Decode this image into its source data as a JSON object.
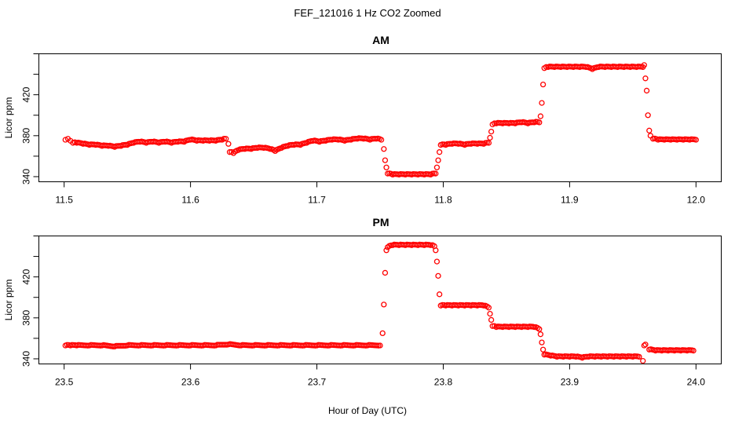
{
  "title": "FEF_121016  1 Hz CO2 Zoomed",
  "xlabel": "Hour of Day (UTC)",
  "colors": {
    "points": "#ff0000"
  },
  "chart_data": [
    {
      "type": "scatter",
      "title": "AM",
      "ylabel": "Licor ppm",
      "xlim": [
        11.48,
        12.02
      ],
      "ylim": [
        335,
        460
      ],
      "x_ticks": [
        11.5,
        11.6,
        11.7,
        11.8,
        11.9,
        12.0
      ],
      "x_tick_labels": [
        "11.5",
        "11.6",
        "11.7",
        "11.8",
        "11.9",
        "12.0"
      ],
      "y_ticks": [
        340,
        380,
        420
      ],
      "y_tick_labels": [
        "340",
        "380",
        "420"
      ],
      "grid": false,
      "series": [
        {
          "marker": "open-circle",
          "points": [
            [
              11.501,
              376
            ],
            [
              11.503,
              377
            ],
            [
              11.505,
              375
            ],
            [
              11.507,
              373
            ],
            [
              11.51,
              373
            ],
            [
              11.515,
              372
            ],
            [
              11.52,
              371
            ],
            [
              11.525,
              371
            ],
            [
              11.53,
              370
            ],
            [
              11.535,
              370
            ],
            [
              11.54,
              369
            ],
            [
              11.545,
              370
            ],
            [
              11.55,
              371
            ],
            [
              11.555,
              373
            ],
            [
              11.56,
              374
            ],
            [
              11.565,
              373
            ],
            [
              11.57,
              374
            ],
            [
              11.575,
              373
            ],
            [
              11.58,
              374
            ],
            [
              11.585,
              373
            ],
            [
              11.59,
              374
            ],
            [
              11.595,
              374
            ],
            [
              11.6,
              376
            ],
            [
              11.605,
              375
            ],
            [
              11.61,
              375
            ],
            [
              11.615,
              375
            ],
            [
              11.62,
              375
            ],
            [
              11.625,
              376
            ],
            [
              11.628,
              377
            ],
            [
              11.63,
              372
            ],
            [
              11.631,
              364
            ],
            [
              11.634,
              363
            ],
            [
              11.638,
              366
            ],
            [
              11.643,
              367
            ],
            [
              11.648,
              367
            ],
            [
              11.653,
              368
            ],
            [
              11.658,
              368
            ],
            [
              11.663,
              367
            ],
            [
              11.667,
              365
            ],
            [
              11.672,
              368
            ],
            [
              11.677,
              370
            ],
            [
              11.682,
              371
            ],
            [
              11.687,
              371
            ],
            [
              11.692,
              373
            ],
            [
              11.697,
              375
            ],
            [
              11.702,
              374
            ],
            [
              11.707,
              375
            ],
            [
              11.712,
              376
            ],
            [
              11.717,
              376
            ],
            [
              11.722,
              375
            ],
            [
              11.727,
              376
            ],
            [
              11.732,
              377
            ],
            [
              11.737,
              377
            ],
            [
              11.742,
              376
            ],
            [
              11.747,
              377
            ],
            [
              11.751,
              376
            ],
            [
              11.753,
              367
            ],
            [
              11.754,
              356
            ],
            [
              11.755,
              349
            ],
            [
              11.756,
              343
            ],
            [
              11.76,
              342
            ],
            [
              11.765,
              342
            ],
            [
              11.77,
              342
            ],
            [
              11.775,
              342
            ],
            [
              11.78,
              342
            ],
            [
              11.785,
              342
            ],
            [
              11.79,
              342
            ],
            [
              11.794,
              343
            ],
            [
              11.795,
              349
            ],
            [
              11.796,
              356
            ],
            [
              11.797,
              364
            ],
            [
              11.798,
              371
            ],
            [
              11.802,
              371
            ],
            [
              11.807,
              372
            ],
            [
              11.812,
              372
            ],
            [
              11.817,
              371
            ],
            [
              11.822,
              372
            ],
            [
              11.827,
              372
            ],
            [
              11.832,
              372
            ],
            [
              11.836,
              373
            ],
            [
              11.837,
              378
            ],
            [
              11.838,
              384
            ],
            [
              11.839,
              391
            ],
            [
              11.842,
              392
            ],
            [
              11.847,
              392
            ],
            [
              11.852,
              392
            ],
            [
              11.857,
              392
            ],
            [
              11.862,
              393
            ],
            [
              11.867,
              392
            ],
            [
              11.872,
              393
            ],
            [
              11.876,
              393
            ],
            [
              11.877,
              399
            ],
            [
              11.878,
              412
            ],
            [
              11.879,
              430
            ],
            [
              11.88,
              446
            ],
            [
              11.883,
              447
            ],
            [
              11.888,
              447
            ],
            [
              11.893,
              447
            ],
            [
              11.898,
              447
            ],
            [
              11.903,
              447
            ],
            [
              11.908,
              447
            ],
            [
              11.913,
              447
            ],
            [
              11.918,
              445
            ],
            [
              11.923,
              447
            ],
            [
              11.928,
              447
            ],
            [
              11.933,
              447
            ],
            [
              11.938,
              447
            ],
            [
              11.943,
              447
            ],
            [
              11.948,
              447
            ],
            [
              11.953,
              447
            ],
            [
              11.958,
              447
            ],
            [
              11.959,
              449
            ],
            [
              11.96,
              436
            ],
            [
              11.961,
              424
            ],
            [
              11.962,
              400
            ],
            [
              11.963,
              385
            ],
            [
              11.964,
              380
            ],
            [
              11.966,
              377
            ],
            [
              11.97,
              376
            ],
            [
              11.975,
              376
            ],
            [
              11.98,
              376
            ],
            [
              11.985,
              376
            ],
            [
              11.99,
              376
            ],
            [
              11.995,
              376
            ],
            [
              12.0,
              376
            ]
          ]
        }
      ]
    },
    {
      "type": "scatter",
      "title": "PM",
      "ylabel": "Licor ppm",
      "xlim": [
        23.48,
        24.02
      ],
      "ylim": [
        335,
        460
      ],
      "x_ticks": [
        23.5,
        23.6,
        23.7,
        23.8,
        23.9,
        24.0
      ],
      "x_tick_labels": [
        "23.5",
        "23.6",
        "23.7",
        "23.8",
        "23.9",
        "24.0"
      ],
      "y_ticks": [
        340,
        380,
        420
      ],
      "y_tick_labels": [
        "340",
        "380",
        "420"
      ],
      "grid": false,
      "series": [
        {
          "marker": "open-circle",
          "points": [
            [
              23.501,
              353
            ],
            [
              23.505,
              353
            ],
            [
              23.51,
              353
            ],
            [
              23.52,
              353
            ],
            [
              23.53,
              353
            ],
            [
              23.54,
              352
            ],
            [
              23.55,
              353
            ],
            [
              23.56,
              353
            ],
            [
              23.57,
              353
            ],
            [
              23.58,
              353
            ],
            [
              23.59,
              353
            ],
            [
              23.6,
              353
            ],
            [
              23.61,
              353
            ],
            [
              23.62,
              353
            ],
            [
              23.63,
              354
            ],
            [
              23.64,
              353
            ],
            [
              23.65,
              353
            ],
            [
              23.66,
              353
            ],
            [
              23.67,
              353
            ],
            [
              23.68,
              353
            ],
            [
              23.69,
              353
            ],
            [
              23.7,
              353
            ],
            [
              23.71,
              353
            ],
            [
              23.72,
              353
            ],
            [
              23.73,
              353
            ],
            [
              23.74,
              353
            ],
            [
              23.75,
              353
            ],
            [
              23.752,
              365
            ],
            [
              23.753,
              393
            ],
            [
              23.754,
              424
            ],
            [
              23.755,
              446
            ],
            [
              23.756,
              449
            ],
            [
              23.76,
              451
            ],
            [
              23.765,
              451
            ],
            [
              23.77,
              451
            ],
            [
              23.775,
              451
            ],
            [
              23.78,
              451
            ],
            [
              23.785,
              451
            ],
            [
              23.79,
              451
            ],
            [
              23.793,
              450
            ],
            [
              23.794,
              446
            ],
            [
              23.795,
              435
            ],
            [
              23.796,
              421
            ],
            [
              23.797,
              403
            ],
            [
              23.798,
              392
            ],
            [
              23.802,
              392
            ],
            [
              23.807,
              392
            ],
            [
              23.812,
              392
            ],
            [
              23.817,
              392
            ],
            [
              23.822,
              392
            ],
            [
              23.827,
              392
            ],
            [
              23.832,
              392
            ],
            [
              23.836,
              390
            ],
            [
              23.837,
              384
            ],
            [
              23.838,
              378
            ],
            [
              23.839,
              372
            ],
            [
              23.842,
              371
            ],
            [
              23.847,
              371
            ],
            [
              23.852,
              371
            ],
            [
              23.857,
              371
            ],
            [
              23.862,
              371
            ],
            [
              23.867,
              371
            ],
            [
              23.872,
              371
            ],
            [
              23.876,
              369
            ],
            [
              23.877,
              364
            ],
            [
              23.878,
              356
            ],
            [
              23.879,
              349
            ],
            [
              23.88,
              344
            ],
            [
              23.885,
              343
            ],
            [
              23.89,
              342
            ],
            [
              23.895,
              342
            ],
            [
              23.9,
              342
            ],
            [
              23.905,
              342
            ],
            [
              23.91,
              341
            ],
            [
              23.915,
              342
            ],
            [
              23.92,
              342
            ],
            [
              23.925,
              342
            ],
            [
              23.93,
              342
            ],
            [
              23.935,
              342
            ],
            [
              23.94,
              342
            ],
            [
              23.945,
              342
            ],
            [
              23.95,
              342
            ],
            [
              23.955,
              342
            ],
            [
              23.958,
              338
            ],
            [
              23.959,
              353
            ],
            [
              23.96,
              354
            ],
            [
              23.963,
              349
            ],
            [
              23.968,
              348
            ],
            [
              23.973,
              348
            ],
            [
              23.978,
              348
            ],
            [
              23.983,
              348
            ],
            [
              23.988,
              348
            ],
            [
              23.993,
              348
            ],
            [
              23.998,
              348
            ]
          ]
        }
      ]
    }
  ]
}
